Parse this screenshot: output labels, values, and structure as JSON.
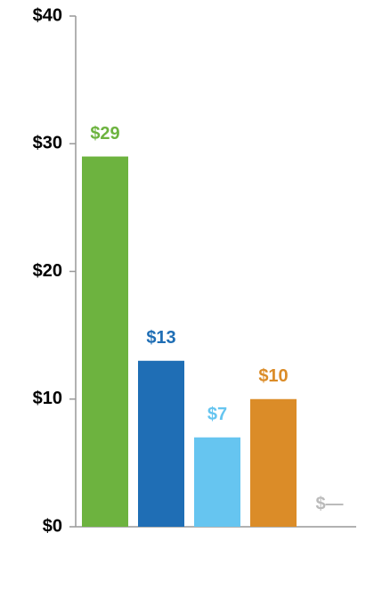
{
  "chart_data": {
    "type": "bar",
    "categories": [
      null,
      null,
      null,
      null,
      null
    ],
    "values": [
      29,
      13,
      7,
      10,
      0
    ],
    "value_labels": [
      "$29",
      "$13",
      "$7",
      "$10",
      "$—"
    ],
    "colors": [
      "#6db33f",
      "#1f6eb5",
      "#66c5f0",
      "#db8c28",
      "#bbbbbb"
    ],
    "ylim": [
      0,
      40
    ],
    "yticks": [
      {
        "value": 0,
        "label": "$0"
      },
      {
        "value": 10,
        "label": "$10"
      },
      {
        "value": 20,
        "label": "$20"
      },
      {
        "value": 30,
        "label": "$30"
      },
      {
        "value": 40,
        "label": "$40"
      }
    ],
    "grid": false
  }
}
